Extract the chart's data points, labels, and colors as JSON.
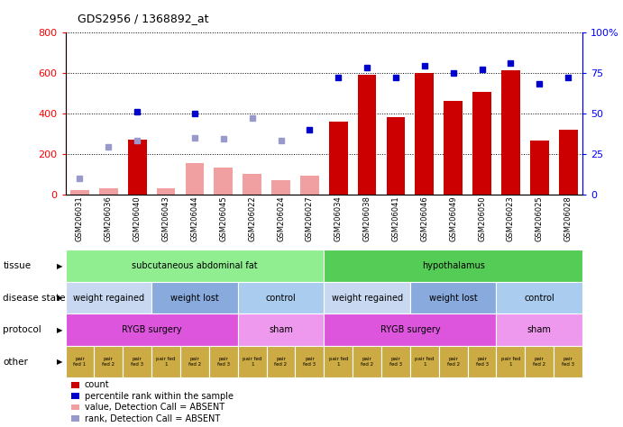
{
  "title": "GDS2956 / 1368892_at",
  "samples": [
    "GSM206031",
    "GSM206036",
    "GSM206040",
    "GSM206043",
    "GSM206044",
    "GSM206045",
    "GSM206022",
    "GSM206024",
    "GSM206027",
    "GSM206034",
    "GSM206038",
    "GSM206041",
    "GSM206046",
    "GSM206049",
    "GSM206050",
    "GSM206023",
    "GSM206025",
    "GSM206028"
  ],
  "count_values": [
    20,
    30,
    270,
    30,
    155,
    130,
    100,
    70,
    90,
    360,
    590,
    380,
    600,
    460,
    505,
    610,
    265,
    320
  ],
  "count_absent": [
    true,
    true,
    false,
    true,
    true,
    true,
    true,
    true,
    true,
    false,
    false,
    false,
    false,
    false,
    false,
    false,
    false,
    false
  ],
  "percentile_values": [
    null,
    null,
    51,
    null,
    50,
    null,
    null,
    null,
    40,
    72,
    78,
    72,
    79,
    75,
    77,
    81,
    68,
    72
  ],
  "percentile_absent": [
    null,
    null,
    false,
    null,
    false,
    null,
    null,
    null,
    false,
    false,
    false,
    false,
    false,
    false,
    false,
    false,
    false,
    false
  ],
  "rank_absent_values": [
    10,
    29,
    33,
    null,
    35,
    34,
    47,
    33,
    null,
    null,
    null,
    null,
    null,
    null,
    null,
    null,
    null,
    null
  ],
  "ylim_left": [
    0,
    800
  ],
  "ylim_right": [
    0,
    100
  ],
  "yticks_left": [
    0,
    200,
    400,
    600,
    800
  ],
  "yticks_right": [
    0,
    25,
    50,
    75,
    100
  ],
  "tissue_groups": [
    {
      "label": "subcutaneous abdominal fat",
      "start": 0,
      "end": 9,
      "color": "#90ee90"
    },
    {
      "label": "hypothalamus",
      "start": 9,
      "end": 18,
      "color": "#55cc55"
    }
  ],
  "disease_state_groups": [
    {
      "label": "weight regained",
      "start": 0,
      "end": 3,
      "color": "#c8d8f0"
    },
    {
      "label": "weight lost",
      "start": 3,
      "end": 6,
      "color": "#88aadd"
    },
    {
      "label": "control",
      "start": 6,
      "end": 9,
      "color": "#aaccee"
    },
    {
      "label": "weight regained",
      "start": 9,
      "end": 12,
      "color": "#c8d8f0"
    },
    {
      "label": "weight lost",
      "start": 12,
      "end": 15,
      "color": "#88aadd"
    },
    {
      "label": "control",
      "start": 15,
      "end": 18,
      "color": "#aaccee"
    }
  ],
  "protocol_groups": [
    {
      "label": "RYGB surgery",
      "start": 0,
      "end": 6,
      "color": "#dd55dd"
    },
    {
      "label": "sham",
      "start": 6,
      "end": 9,
      "color": "#ee99ee"
    },
    {
      "label": "RYGB surgery",
      "start": 9,
      "end": 15,
      "color": "#dd55dd"
    },
    {
      "label": "sham",
      "start": 15,
      "end": 18,
      "color": "#ee99ee"
    }
  ],
  "other_labels": [
    "pair\nfed 1",
    "pair\nfed 2",
    "pair\nfed 3",
    "pair fed\n1",
    "pair\nfed 2",
    "pair\nfed 3",
    "pair fed\n1",
    "pair\nfed 2",
    "pair\nfed 3",
    "pair fed\n1",
    "pair\nfed 2",
    "pair\nfed 3",
    "pair fed\n1",
    "pair\nfed 2",
    "pair\nfed 3",
    "pair fed\n1",
    "pair\nfed 2",
    "pair\nfed 3"
  ],
  "other_color": "#ccaa44",
  "bar_color_present": "#cc0000",
  "bar_color_absent": "#f0a0a0",
  "dot_color_present": "#0000cc",
  "dot_color_absent": "#9999cc",
  "legend_items": [
    {
      "color": "#cc0000",
      "label": "count"
    },
    {
      "color": "#0000cc",
      "label": "percentile rank within the sample"
    },
    {
      "color": "#f0a0a0",
      "label": "value, Detection Call = ABSENT"
    },
    {
      "color": "#9999cc",
      "label": "rank, Detection Call = ABSENT"
    }
  ]
}
